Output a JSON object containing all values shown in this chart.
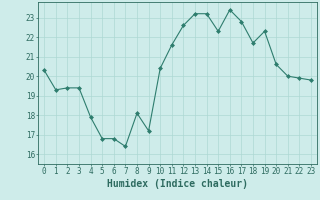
{
  "x": [
    0,
    1,
    2,
    3,
    4,
    5,
    6,
    7,
    8,
    9,
    10,
    11,
    12,
    13,
    14,
    15,
    16,
    17,
    18,
    19,
    20,
    21,
    22,
    23
  ],
  "y": [
    20.3,
    19.3,
    19.4,
    19.4,
    17.9,
    16.8,
    16.8,
    16.4,
    18.1,
    17.2,
    20.4,
    21.6,
    22.6,
    23.2,
    23.2,
    22.3,
    23.4,
    22.8,
    21.7,
    22.3,
    20.6,
    20.0,
    19.9,
    19.8
  ],
  "line_color": "#2e7d6e",
  "marker": "D",
  "marker_size": 2.0,
  "bg_color": "#ceecea",
  "grid_color": "#aed8d4",
  "xlabel": "Humidex (Indice chaleur)",
  "ylim": [
    15.5,
    23.8
  ],
  "xlim": [
    -0.5,
    23.5
  ],
  "yticks": [
    16,
    17,
    18,
    19,
    20,
    21,
    22,
    23
  ],
  "xticks": [
    0,
    1,
    2,
    3,
    4,
    5,
    6,
    7,
    8,
    9,
    10,
    11,
    12,
    13,
    14,
    15,
    16,
    17,
    18,
    19,
    20,
    21,
    22,
    23
  ],
  "tick_labelsize": 5.5,
  "xlabel_fontsize": 7.0,
  "axis_color": "#2e6b60"
}
